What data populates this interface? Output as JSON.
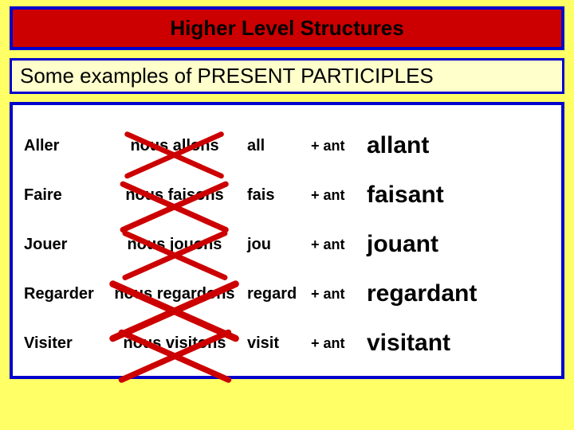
{
  "colors": {
    "slide_bg": "#ffff66",
    "title_bg": "#cc0000",
    "title_border": "#0000cc",
    "title_text": "#000000",
    "subtitle_bg": "#ffffcc",
    "subtitle_border": "#0000cc",
    "subtitle_text": "#000000",
    "content_bg": "#ffffff",
    "content_border": "#0000cc",
    "cross_stroke": "#cc0000",
    "text_black": "#000000"
  },
  "title": {
    "text": "Higher Level Structures",
    "fontsize": 26
  },
  "subtitle": {
    "text": "Some examples of PRESENT PARTICIPLES",
    "fontsize": 26
  },
  "cross": {
    "stroke_width": 5
  },
  "table": {
    "columns": [
      "infinitive",
      "nous_form",
      "stem",
      "suffix",
      "result"
    ],
    "rows": [
      {
        "infinitive": "Aller",
        "nous_form": "nous allons",
        "stem": "all",
        "suffix": "+ ant",
        "result": "allant"
      },
      {
        "infinitive": "Faire",
        "nous_form": "nous faisons",
        "stem": "fais",
        "suffix": "+ ant",
        "result": "faisant"
      },
      {
        "infinitive": "Jouer",
        "nous_form": "nous jouons",
        "stem": "jou",
        "suffix": "+ ant",
        "result": "jouant"
      },
      {
        "infinitive": "Regarder",
        "nous_form": "nous regardons",
        "stem": "regard",
        "suffix": "+ ant",
        "result": "regardant"
      },
      {
        "infinitive": "Visiter",
        "nous_form": "nous visitons",
        "stem": "visit",
        "suffix": "+ ant",
        "result": "visitant"
      }
    ]
  }
}
